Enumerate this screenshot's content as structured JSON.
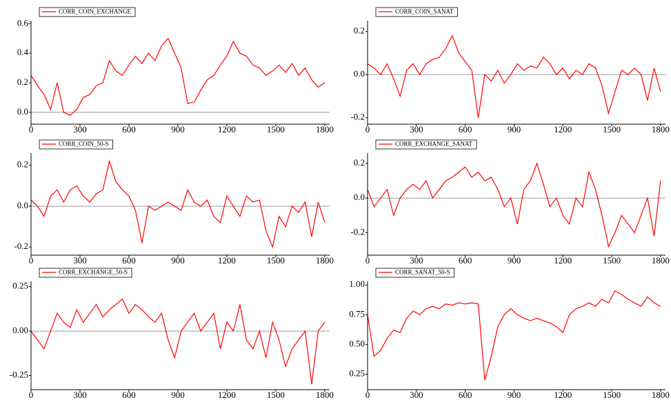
{
  "chart_data": [
    {
      "type": "line",
      "legend": "upper left",
      "zero_line": true,
      "x": [
        0,
        40,
        80,
        120,
        160,
        200,
        240,
        280,
        320,
        360,
        400,
        440,
        480,
        520,
        560,
        600,
        640,
        680,
        720,
        760,
        800,
        840,
        880,
        920,
        960,
        1000,
        1040,
        1080,
        1120,
        1160,
        1200,
        1240,
        1280,
        1320,
        1360,
        1400,
        1440,
        1480,
        1520,
        1560,
        1600,
        1640,
        1680,
        1720,
        1760,
        1800
      ],
      "series": [
        {
          "name": "CORR_COIN_EXCHANGE",
          "color": "#ff0000",
          "values": [
            0.25,
            0.18,
            0.12,
            0.02,
            0.2,
            0.0,
            -0.02,
            0.02,
            0.1,
            0.12,
            0.18,
            0.2,
            0.35,
            0.28,
            0.25,
            0.32,
            0.38,
            0.33,
            0.4,
            0.35,
            0.45,
            0.5,
            0.4,
            0.3,
            0.06,
            0.07,
            0.15,
            0.22,
            0.25,
            0.32,
            0.38,
            0.48,
            0.4,
            0.38,
            0.32,
            0.3,
            0.25,
            0.28,
            0.32,
            0.27,
            0.33,
            0.25,
            0.3,
            0.22,
            0.17,
            0.2
          ]
        }
      ],
      "xlim": [
        0,
        1830
      ],
      "xticks": [
        0,
        300,
        600,
        900,
        1200,
        1500,
        1800
      ],
      "ylim": [
        -0.08,
        0.62
      ],
      "yticks": [
        0.6,
        0.4,
        0.2,
        {
          "value": 0,
          "label": "0.0"
        }
      ]
    },
    {
      "type": "line",
      "legend": "upper left",
      "zero_line": true,
      "x": [
        0,
        40,
        80,
        120,
        160,
        200,
        240,
        280,
        320,
        360,
        400,
        440,
        480,
        520,
        560,
        600,
        640,
        680,
        720,
        760,
        800,
        840,
        880,
        920,
        960,
        1000,
        1040,
        1080,
        1120,
        1160,
        1200,
        1240,
        1280,
        1320,
        1360,
        1400,
        1440,
        1480,
        1520,
        1560,
        1600,
        1640,
        1680,
        1720,
        1760,
        1800
      ],
      "series": [
        {
          "name": "CORR_COIN_SANAT",
          "color": "#ff0000",
          "values": [
            0.05,
            0.03,
            0.0,
            0.05,
            -0.02,
            -0.1,
            0.02,
            0.05,
            0.0,
            0.05,
            0.07,
            0.08,
            0.12,
            0.18,
            0.1,
            0.06,
            0.02,
            -0.2,
            0.0,
            -0.03,
            0.02,
            -0.04,
            0.0,
            0.05,
            0.02,
            0.04,
            0.03,
            0.08,
            0.05,
            0.0,
            0.03,
            -0.02,
            0.02,
            0.0,
            0.05,
            0.03,
            -0.05,
            -0.18,
            -0.08,
            0.02,
            0.0,
            0.03,
            0.0,
            -0.12,
            0.03,
            -0.08
          ]
        }
      ],
      "xlim": [
        0,
        1830
      ],
      "xticks": [
        0,
        300,
        600,
        900,
        1200,
        1500,
        1800
      ],
      "ylim": [
        -0.23,
        0.25
      ],
      "yticks": [
        0.2,
        {
          "value": 0,
          "label": "0.0"
        },
        -0.2
      ]
    },
    {
      "type": "line",
      "legend": "upper left",
      "zero_line": true,
      "x": [
        0,
        40,
        80,
        120,
        160,
        200,
        240,
        280,
        320,
        360,
        400,
        440,
        480,
        520,
        560,
        600,
        640,
        680,
        720,
        760,
        800,
        840,
        880,
        920,
        960,
        1000,
        1040,
        1080,
        1120,
        1160,
        1200,
        1240,
        1280,
        1320,
        1360,
        1400,
        1440,
        1480,
        1520,
        1560,
        1600,
        1640,
        1680,
        1720,
        1760,
        1800
      ],
      "series": [
        {
          "name": "CORR_COIN_50-S",
          "color": "#ff0000",
          "values": [
            0.03,
            0.0,
            -0.05,
            0.05,
            0.08,
            0.02,
            0.08,
            0.1,
            0.05,
            0.02,
            0.06,
            0.08,
            0.22,
            0.12,
            0.08,
            0.05,
            -0.02,
            -0.18,
            0.0,
            -0.02,
            0.0,
            0.02,
            0.0,
            -0.02,
            0.08,
            0.02,
            0.0,
            0.03,
            -0.05,
            -0.08,
            0.05,
            0.0,
            -0.05,
            0.05,
            0.02,
            0.03,
            -0.12,
            -0.2,
            -0.05,
            -0.1,
            0.0,
            -0.03,
            0.02,
            -0.15,
            0.02,
            -0.08
          ]
        }
      ],
      "xlim": [
        0,
        1830
      ],
      "xticks": [
        0,
        300,
        600,
        900,
        1200,
        1500,
        1800
      ],
      "ylim": [
        -0.24,
        0.26
      ],
      "yticks": [
        0.2,
        {
          "value": 0,
          "label": "0.0"
        },
        -0.2
      ]
    },
    {
      "type": "line",
      "legend": "upper left",
      "zero_line": true,
      "x": [
        0,
        40,
        80,
        120,
        160,
        200,
        240,
        280,
        320,
        360,
        400,
        440,
        480,
        520,
        560,
        600,
        640,
        680,
        720,
        760,
        800,
        840,
        880,
        920,
        960,
        1000,
        1040,
        1080,
        1120,
        1160,
        1200,
        1240,
        1280,
        1320,
        1360,
        1400,
        1440,
        1480,
        1520,
        1560,
        1600,
        1640,
        1680,
        1720,
        1760,
        1800
      ],
      "series": [
        {
          "name": "CORR_EXCHANGE_SANAT",
          "color": "#ff0000",
          "values": [
            0.05,
            -0.05,
            0.0,
            0.05,
            -0.1,
            0.0,
            0.05,
            0.08,
            0.05,
            0.1,
            0.0,
            0.05,
            0.1,
            0.12,
            0.15,
            0.18,
            0.12,
            0.15,
            0.1,
            0.12,
            0.05,
            -0.05,
            0.0,
            -0.15,
            0.05,
            0.1,
            0.2,
            0.08,
            -0.05,
            0.0,
            -0.1,
            -0.15,
            0.0,
            -0.05,
            0.15,
            0.05,
            -0.1,
            -0.28,
            -0.2,
            -0.1,
            -0.15,
            -0.2,
            -0.1,
            0.0,
            -0.22,
            0.1
          ]
        }
      ],
      "xlim": [
        0,
        1830
      ],
      "xticks": [
        0,
        300,
        600,
        900,
        1200,
        1500,
        1800
      ],
      "ylim": [
        -0.33,
        0.26
      ],
      "yticks": [
        0.2,
        {
          "value": 0,
          "label": "0.0"
        },
        -0.2
      ]
    },
    {
      "type": "line",
      "legend": "upper left",
      "zero_line": true,
      "x": [
        0,
        40,
        80,
        120,
        160,
        200,
        240,
        280,
        320,
        360,
        400,
        440,
        480,
        520,
        560,
        600,
        640,
        680,
        720,
        760,
        800,
        840,
        880,
        920,
        960,
        1000,
        1040,
        1080,
        1120,
        1160,
        1200,
        1240,
        1280,
        1320,
        1360,
        1400,
        1440,
        1480,
        1520,
        1560,
        1600,
        1640,
        1680,
        1720,
        1760,
        1800
      ],
      "series": [
        {
          "name": "CORR_EXCHANGE_50-S",
          "color": "#ff0000",
          "values": [
            0.0,
            -0.05,
            -0.1,
            0.0,
            0.1,
            0.05,
            0.02,
            0.12,
            0.05,
            0.1,
            0.15,
            0.08,
            0.12,
            0.15,
            0.18,
            0.1,
            0.15,
            0.12,
            0.08,
            0.05,
            0.1,
            -0.05,
            -0.15,
            0.0,
            0.05,
            0.1,
            0.0,
            0.05,
            0.1,
            -0.1,
            0.05,
            0.0,
            0.15,
            -0.05,
            -0.1,
            0.0,
            -0.15,
            0.05,
            -0.05,
            -0.2,
            -0.1,
            -0.05,
            0.0,
            -0.3,
            0.0,
            0.05
          ]
        }
      ],
      "xlim": [
        0,
        1830
      ],
      "xticks": [
        0,
        300,
        600,
        900,
        1200,
        1500,
        1800
      ],
      "ylim": [
        -0.33,
        0.28
      ],
      "yticks": [
        0.25,
        {
          "value": 0,
          "label": "0.00"
        },
        -0.25
      ]
    },
    {
      "type": "line",
      "legend": "upper left",
      "zero_line": false,
      "x": [
        0,
        40,
        80,
        120,
        160,
        200,
        240,
        280,
        320,
        360,
        400,
        440,
        480,
        520,
        560,
        600,
        640,
        680,
        720,
        760,
        800,
        840,
        880,
        920,
        960,
        1000,
        1040,
        1080,
        1120,
        1160,
        1200,
        1240,
        1280,
        1320,
        1360,
        1400,
        1440,
        1480,
        1520,
        1560,
        1600,
        1640,
        1680,
        1720,
        1760,
        1800
      ],
      "series": [
        {
          "name": "CORR_SANAT_50-S",
          "color": "#ff0000",
          "values": [
            0.75,
            0.4,
            0.45,
            0.55,
            0.62,
            0.6,
            0.72,
            0.78,
            0.75,
            0.8,
            0.82,
            0.8,
            0.84,
            0.83,
            0.85,
            0.84,
            0.85,
            0.84,
            0.2,
            0.4,
            0.65,
            0.75,
            0.8,
            0.75,
            0.72,
            0.7,
            0.72,
            0.7,
            0.68,
            0.65,
            0.6,
            0.75,
            0.8,
            0.82,
            0.85,
            0.82,
            0.88,
            0.85,
            0.95,
            0.92,
            0.88,
            0.85,
            0.82,
            0.9,
            0.85,
            0.82
          ]
        }
      ],
      "xlim": [
        0,
        1830
      ],
      "xticks": [
        0,
        300,
        600,
        900,
        1200,
        1500,
        1800
      ],
      "ylim": [
        0.12,
        1.03
      ],
      "yticks": [
        {
          "value": 1,
          "label": "1.00"
        },
        0.75,
        {
          "value": 0.5,
          "label": "0.50"
        },
        0.25
      ]
    }
  ]
}
